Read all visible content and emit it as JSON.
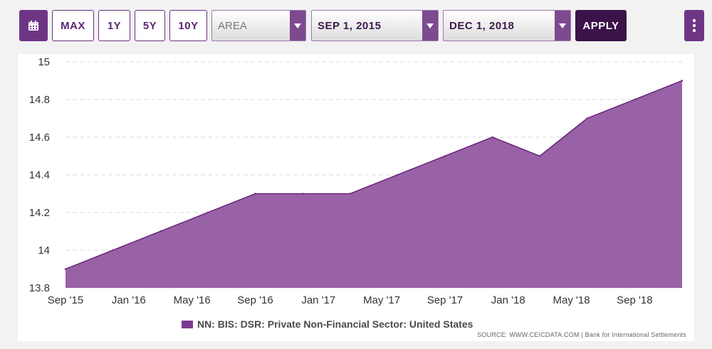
{
  "toolbar": {
    "calendar_icon": "calendar-icon",
    "max_label": "MAX",
    "one_year_label": "1Y",
    "five_year_label": "5Y",
    "ten_year_label": "10Y",
    "chart_type_value": "AREA",
    "start_date_value": "SEP 1, 2015",
    "end_date_value": "DEC 1, 2018",
    "apply_label": "APPLY",
    "more_icon": "vertical-dots-icon"
  },
  "colors": {
    "accent": "#6e3585",
    "dark_accent": "#3b1349",
    "series_fill": "#9a62a6",
    "series_line": "#6a2a7e"
  },
  "chart_data": {
    "type": "area",
    "x": [
      "2015-09",
      "2015-12",
      "2016-03",
      "2016-06",
      "2016-09",
      "2016-12",
      "2017-03",
      "2017-06",
      "2017-09",
      "2017-12",
      "2018-03",
      "2018-06",
      "2018-09",
      "2018-12"
    ],
    "series": [
      {
        "name": "NN: BIS: DSR: Private Non-Financial Sector: United States",
        "values": [
          13.9,
          14.0,
          14.1,
          14.2,
          14.3,
          14.3,
          14.3,
          14.4,
          14.5,
          14.6,
          14.5,
          14.7,
          14.8,
          14.9
        ]
      }
    ],
    "ylim": [
      13.8,
      15
    ],
    "yticks": [
      "15",
      "14.8",
      "14.6",
      "14.4",
      "14.2",
      "14",
      "13.8"
    ],
    "xticks": [
      "Sep '15",
      "Jan '16",
      "May '16",
      "Sep '16",
      "Jan '17",
      "May '17",
      "Sep '17",
      "Jan '18",
      "May '18",
      "Sep '18"
    ],
    "xtick_dates": [
      "2015-09",
      "2016-01",
      "2016-05",
      "2016-09",
      "2017-01",
      "2017-05",
      "2017-09",
      "2018-01",
      "2018-05",
      "2018-09"
    ],
    "grid": "horizontal dashed",
    "legend_position": "bottom"
  },
  "legend": {
    "label": "NN: BIS: DSR: Private Non-Financial Sector: United States"
  },
  "source": "SOURCE: WWW.CEICDATA.COM | Bank for International Settlements"
}
